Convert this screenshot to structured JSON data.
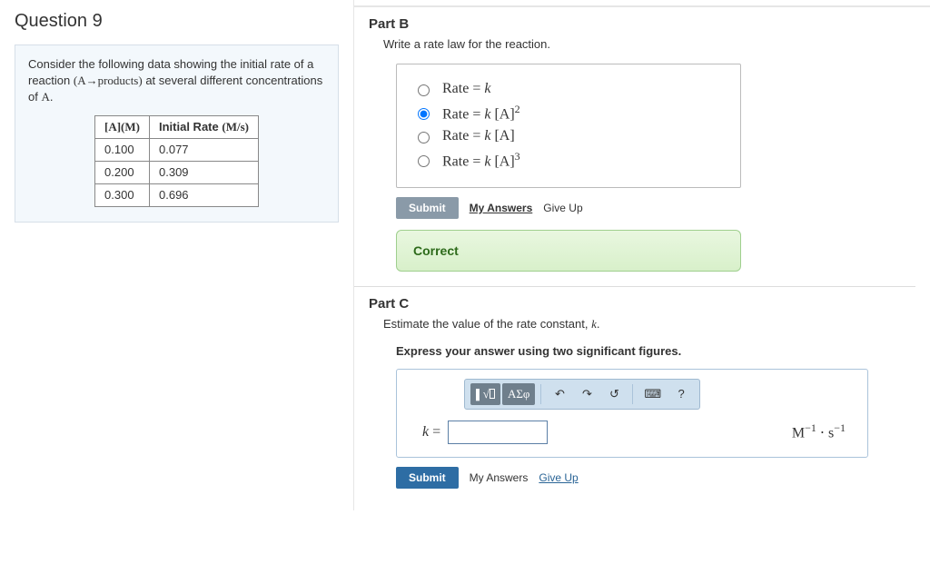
{
  "question": {
    "title": "Question 9",
    "context_html": "Consider the following data showing the initial rate of a reaction (A→products) at several different concentrations of A.",
    "data_table": {
      "columns": [
        "[A](M)",
        "Initial Rate (M/s)"
      ],
      "rows": [
        [
          "0.100",
          "0.077"
        ],
        [
          "0.200",
          "0.309"
        ],
        [
          "0.300",
          "0.696"
        ]
      ]
    }
  },
  "partB": {
    "label": "Part B",
    "prompt": "Write a rate law for the reaction.",
    "options": [
      {
        "html": "Rate = <i>k</i>",
        "selected": false
      },
      {
        "html": "Rate = <i>k</i> [A]<sup>2</sup>",
        "selected": true
      },
      {
        "html": "Rate = <i>k</i> [A]",
        "selected": false
      },
      {
        "html": "Rate = <i>k</i> [A]<sup>3</sup>",
        "selected": false
      }
    ],
    "buttons": {
      "submit": "Submit",
      "my_answers": "My Answers",
      "give_up": "Give Up"
    },
    "feedback": "Correct"
  },
  "partC": {
    "label": "Part C",
    "prompt_html": "Estimate the value of the rate constant, <i>k</i>.",
    "instruction": "Express your answer using two significant figures.",
    "toolbar": {
      "templates_icon": "x√□",
      "greek": "ΑΣφ",
      "undo": "↶",
      "redo": "↷",
      "reset": "↺",
      "keyboard": "⌨",
      "help": "?"
    },
    "variable": "k =",
    "input_value": "",
    "units_html": "M<sup>−1</sup> ⋅ s<sup>−1</sup>",
    "buttons": {
      "submit": "Submit",
      "my_answers": "My Answers",
      "give_up": "Give Up"
    }
  },
  "colors": {
    "submit_grey": "#8a9aa8",
    "submit_blue": "#2e6da4",
    "feedback_border": "#9fcf8e",
    "toolbar_bg": "#cfe0ee"
  }
}
